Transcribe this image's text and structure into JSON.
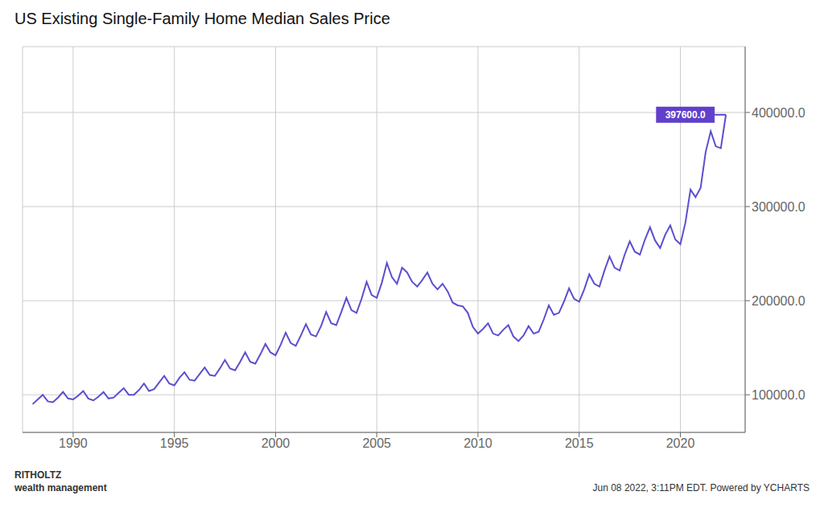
{
  "chart_data": {
    "type": "line",
    "title": "US Existing Single-Family Home Median Sales Price",
    "x": [
      1988.0,
      1988.25,
      1988.5,
      1988.75,
      1989.0,
      1989.25,
      1989.5,
      1989.75,
      1990.0,
      1990.25,
      1990.5,
      1990.75,
      1991.0,
      1991.25,
      1991.5,
      1991.75,
      1992.0,
      1992.25,
      1992.5,
      1992.75,
      1993.0,
      1993.25,
      1993.5,
      1993.75,
      1994.0,
      1994.25,
      1994.5,
      1994.75,
      1995.0,
      1995.25,
      1995.5,
      1995.75,
      1996.0,
      1996.25,
      1996.5,
      1996.75,
      1997.0,
      1997.25,
      1997.5,
      1997.75,
      1998.0,
      1998.25,
      1998.5,
      1998.75,
      1999.0,
      1999.25,
      1999.5,
      1999.75,
      2000.0,
      2000.25,
      2000.5,
      2000.75,
      2001.0,
      2001.25,
      2001.5,
      2001.75,
      2002.0,
      2002.25,
      2002.5,
      2002.75,
      2003.0,
      2003.25,
      2003.5,
      2003.75,
      2004.0,
      2004.25,
      2004.5,
      2004.75,
      2005.0,
      2005.25,
      2005.5,
      2005.75,
      2006.0,
      2006.25,
      2006.5,
      2006.75,
      2007.0,
      2007.25,
      2007.5,
      2007.75,
      2008.0,
      2008.25,
      2008.5,
      2008.75,
      2009.0,
      2009.25,
      2009.5,
      2009.75,
      2010.0,
      2010.25,
      2010.5,
      2010.75,
      2011.0,
      2011.25,
      2011.5,
      2011.75,
      2012.0,
      2012.25,
      2012.5,
      2012.75,
      2013.0,
      2013.25,
      2013.5,
      2013.75,
      2014.0,
      2014.25,
      2014.5,
      2014.75,
      2015.0,
      2015.25,
      2015.5,
      2015.75,
      2016.0,
      2016.25,
      2016.5,
      2016.75,
      2017.0,
      2017.25,
      2017.5,
      2017.75,
      2018.0,
      2018.25,
      2018.5,
      2018.75,
      2019.0,
      2019.25,
      2019.5,
      2019.75,
      2020.0,
      2020.25,
      2020.5,
      2020.75,
      2021.0,
      2021.25,
      2021.5,
      2021.75,
      2022.0,
      2022.25
    ],
    "values": [
      90000,
      95000,
      100000,
      93000,
      92000,
      97000,
      103000,
      96000,
      95000,
      99000,
      104000,
      96000,
      94000,
      98000,
      103000,
      96000,
      97000,
      102000,
      107000,
      100000,
      100000,
      105000,
      112000,
      104000,
      106000,
      113000,
      120000,
      112000,
      110000,
      118000,
      124000,
      116000,
      115000,
      122000,
      129000,
      121000,
      120000,
      128000,
      137000,
      128000,
      126000,
      135000,
      145000,
      135000,
      133000,
      143000,
      154000,
      145000,
      142000,
      153000,
      166000,
      155000,
      152000,
      163000,
      175000,
      164000,
      162000,
      173000,
      188000,
      176000,
      174000,
      188000,
      203000,
      190000,
      187000,
      202000,
      220000,
      206000,
      203000,
      219000,
      240000,
      225000,
      218000,
      235000,
      230000,
      220000,
      215000,
      222000,
      230000,
      218000,
      212000,
      218000,
      210000,
      198000,
      195000,
      194000,
      187000,
      172000,
      165000,
      170000,
      176000,
      165000,
      163000,
      169000,
      174000,
      162000,
      157000,
      163000,
      173000,
      165000,
      167000,
      180000,
      195000,
      185000,
      187000,
      199000,
      213000,
      202000,
      199000,
      212000,
      228000,
      218000,
      215000,
      232000,
      247000,
      235000,
      232000,
      249000,
      263000,
      252000,
      249000,
      265000,
      278000,
      264000,
      256000,
      270000,
      280000,
      265000,
      260000,
      283000,
      318000,
      310000,
      320000,
      358000,
      380000,
      364000,
      362000,
      397600
    ],
    "color": "#5b4fcf",
    "xlim": [
      1987.5,
      2023.2
    ],
    "ylim": [
      60000,
      470000
    ],
    "xticks": [
      1990,
      1995,
      2000,
      2005,
      2010,
      2015,
      2020
    ],
    "yticks": [
      {
        "value": 100000,
        "label": "100000.0"
      },
      {
        "value": 200000,
        "label": "200000.0"
      },
      {
        "value": 300000,
        "label": "300000.0"
      },
      {
        "value": 400000,
        "label": "400000.0"
      }
    ],
    "grid": true,
    "annotations": [
      {
        "text": "397600.0",
        "x": 2022.25,
        "y": 397600,
        "color": "#6040cc"
      },
      {
        "text": "RITHOLTZ\nwealth management"
      },
      {
        "text": "Jun 08 2022, 3:11PM EDT. Powered by YCHARTS"
      }
    ]
  }
}
